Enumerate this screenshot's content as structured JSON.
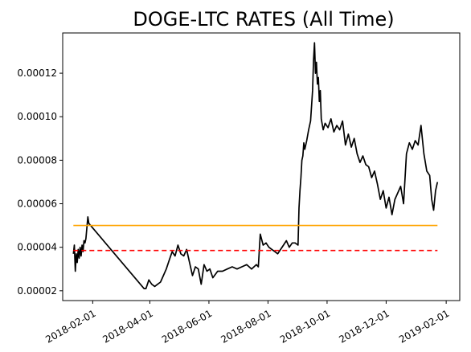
{
  "chart_data": {
    "type": "line",
    "title": "DOGE-LTC RATES (All Time)",
    "xlabel": "",
    "ylabel": "",
    "xlim": [
      "2018-01-01",
      "2019-02-15"
    ],
    "ylim": [
      1.55e-05,
      0.0001385
    ],
    "x_ticks": [
      "2018-02-01",
      "2018-04-01",
      "2018-06-01",
      "2018-08-01",
      "2018-10-01",
      "2018-12-01",
      "2019-02-01"
    ],
    "y_ticks": [
      2e-05,
      4e-05,
      6e-05,
      8e-05,
      0.0001,
      0.00012
    ],
    "y_tick_labels": [
      "0.00002",
      "0.00004",
      "0.00006",
      "0.00008",
      "0.00010",
      "0.00012"
    ],
    "series": [
      {
        "color": "#000000",
        "style": "solid",
        "x": [
          "2018-01-12",
          "2018-01-13",
          "2018-01-14",
          "2018-01-15",
          "2018-01-16",
          "2018-01-17",
          "2018-01-18",
          "2018-01-19",
          "2018-01-20",
          "2018-01-21",
          "2018-01-22",
          "2018-01-23",
          "2018-01-24",
          "2018-01-25",
          "2018-01-26",
          "2018-01-27",
          "2018-01-28",
          "2018-03-26",
          "2018-03-28",
          "2018-03-31",
          "2018-04-03",
          "2018-04-06",
          "2018-04-09",
          "2018-04-12",
          "2018-04-15",
          "2018-04-18",
          "2018-04-21",
          "2018-04-24",
          "2018-04-27",
          "2018-04-30",
          "2018-05-03",
          "2018-05-06",
          "2018-05-09",
          "2018-05-12",
          "2018-05-15",
          "2018-05-18",
          "2018-05-21",
          "2018-05-24",
          "2018-05-27",
          "2018-05-30",
          "2018-06-02",
          "2018-06-05",
          "2018-06-10",
          "2018-06-15",
          "2018-06-20",
          "2018-06-25",
          "2018-06-30",
          "2018-07-05",
          "2018-07-10",
          "2018-07-15",
          "2018-07-20",
          "2018-07-22",
          "2018-07-24",
          "2018-07-27",
          "2018-07-30",
          "2018-08-02",
          "2018-08-05",
          "2018-08-08",
          "2018-08-11",
          "2018-08-14",
          "2018-08-17",
          "2018-08-20",
          "2018-08-23",
          "2018-08-26",
          "2018-08-29",
          "2018-09-01",
          "2018-09-02",
          "2018-09-03",
          "2018-09-04",
          "2018-09-05",
          "2018-09-06",
          "2018-09-07",
          "2018-09-08",
          "2018-09-10",
          "2018-09-12",
          "2018-09-14",
          "2018-09-16",
          "2018-09-17",
          "2018-09-18",
          "2018-09-19",
          "2018-09-20",
          "2018-09-21",
          "2018-09-22",
          "2018-09-23",
          "2018-09-24",
          "2018-09-25",
          "2018-09-27",
          "2018-09-29",
          "2018-10-02",
          "2018-10-05",
          "2018-10-08",
          "2018-10-11",
          "2018-10-14",
          "2018-10-17",
          "2018-10-20",
          "2018-10-23",
          "2018-10-26",
          "2018-10-29",
          "2018-11-01",
          "2018-11-04",
          "2018-11-07",
          "2018-11-10",
          "2018-11-13",
          "2018-11-16",
          "2018-11-19",
          "2018-11-22",
          "2018-11-25",
          "2018-11-28",
          "2018-12-01",
          "2018-12-04",
          "2018-12-07",
          "2018-12-10",
          "2018-12-13",
          "2018-12-16",
          "2018-12-19",
          "2018-12-22",
          "2018-12-25",
          "2018-12-28",
          "2018-12-31",
          "2019-01-03",
          "2019-01-06",
          "2019-01-09",
          "2019-01-12",
          "2019-01-15",
          "2019-01-17",
          "2019-01-19",
          "2019-01-21",
          "2019-01-23"
        ],
        "y": [
          3.7e-05,
          4.1e-05,
          2.9e-05,
          3.7e-05,
          3.3e-05,
          3.9e-05,
          3.5e-05,
          4e-05,
          3.6e-05,
          4.1e-05,
          3.8e-05,
          4.3e-05,
          4.2e-05,
          4.4e-05,
          4.9e-05,
          5.4e-05,
          5.1e-05,
          2.1e-05,
          2.1e-05,
          2.5e-05,
          2.3e-05,
          2.2e-05,
          2.3e-05,
          2.4e-05,
          2.7e-05,
          3e-05,
          3.4e-05,
          3.8e-05,
          3.6e-05,
          4.1e-05,
          3.7e-05,
          3.6e-05,
          3.9e-05,
          3.3e-05,
          2.7e-05,
          3.1e-05,
          3e-05,
          2.3e-05,
          3.2e-05,
          2.9e-05,
          3e-05,
          2.6e-05,
          2.9e-05,
          2.9e-05,
          3e-05,
          3.1e-05,
          3e-05,
          3.1e-05,
          3.2e-05,
          3e-05,
          3.2e-05,
          3.1e-05,
          4.6e-05,
          4.1e-05,
          4.2e-05,
          4e-05,
          3.9e-05,
          3.8e-05,
          3.7e-05,
          3.9e-05,
          4.1e-05,
          4.3e-05,
          4e-05,
          4.2e-05,
          4.2e-05,
          4.1e-05,
          5.8e-05,
          6.6e-05,
          7.2e-05,
          8e-05,
          8.2e-05,
          8.8e-05,
          8.5e-05,
          8.9e-05,
          9.4e-05,
          9.8e-05,
          0.000112,
          0.000126,
          0.000134,
          0.00012,
          0.000125,
          0.000115,
          0.000118,
          0.000107,
          0.000112,
          9.9e-05,
          9.4e-05,
          9.7e-05,
          9.5e-05,
          9.9e-05,
          9.3e-05,
          9.6e-05,
          9.4e-05,
          9.8e-05,
          8.7e-05,
          9.2e-05,
          8.6e-05,
          9e-05,
          8.3e-05,
          7.9e-05,
          8.2e-05,
          7.8e-05,
          7.7e-05,
          7.2e-05,
          7.5e-05,
          6.9e-05,
          6.2e-05,
          6.6e-05,
          5.8e-05,
          6.3e-05,
          5.5e-05,
          6.2e-05,
          6.5e-05,
          6.8e-05,
          6e-05,
          8.3e-05,
          8.8e-05,
          8.5e-05,
          8.9e-05,
          8.7e-05,
          9.6e-05,
          8.3e-05,
          7.5e-05,
          7.3e-05,
          6.2e-05,
          5.7e-05,
          6.6e-05,
          7e-05
        ]
      },
      {
        "color": "#ffa500",
        "style": "solid",
        "x": [
          "2018-01-12",
          "2019-01-23"
        ],
        "y": [
          5e-05,
          5e-05
        ]
      },
      {
        "color": "#ff0000",
        "style": "dashed",
        "x": [
          "2018-01-12",
          "2019-01-23"
        ],
        "y": [
          3.85e-05,
          3.85e-05
        ]
      }
    ],
    "grid": false,
    "legend": "none"
  }
}
